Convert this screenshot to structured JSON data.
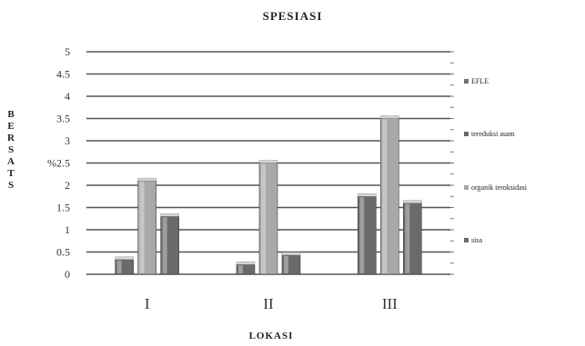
{
  "chart_data": {
    "type": "bar",
    "title": "SPESIASI",
    "xlabel": "LOKASI",
    "ylabel": "BERSATS",
    "ylim": [
      0,
      5
    ],
    "yticks": [
      "0",
      "0.5",
      "1",
      "1.5",
      "2",
      "%2.5",
      "3",
      "3.5",
      "4",
      "4.5",
      "5"
    ],
    "categories": [
      "I",
      "II",
      "III"
    ],
    "series": [
      {
        "name": "EFLE",
        "values": [
          null,
          null,
          null
        ],
        "color": "#707070"
      },
      {
        "name": "tereduksi asam",
        "values": [
          0.33,
          0.22,
          1.75
        ],
        "color": "#6a6a6a"
      },
      {
        "name": "organik teroksidasi",
        "values": [
          2.1,
          2.5,
          3.5
        ],
        "color": "#a8a8a8"
      },
      {
        "name": "sisa",
        "values": [
          1.3,
          0.43,
          1.6
        ],
        "color": "#6a6a6a"
      }
    ],
    "grid": true,
    "legend": "right"
  }
}
